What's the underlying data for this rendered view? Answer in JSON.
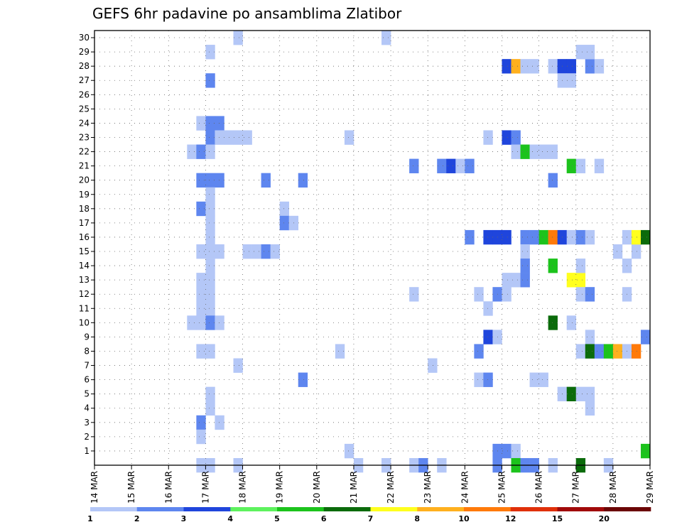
{
  "chart_data": {
    "type": "heatmap",
    "title": "GEFS 6hr padavine po ansamblima Zlatibor",
    "xlabel": "",
    "ylabel": "",
    "x_ticks": [
      "14 MAR",
      "15 MAR",
      "16 MAR",
      "17 MAR",
      "18 MAR",
      "19 MAR",
      "20 MAR",
      "21 MAR",
      "22 MAR",
      "23 MAR",
      "24 MAR",
      "25 MAR",
      "26 MAR",
      "27 MAR",
      "28 MAR",
      "29 MAR"
    ],
    "y_ticks": [
      1,
      2,
      3,
      4,
      5,
      6,
      7,
      8,
      9,
      10,
      11,
      12,
      13,
      14,
      15,
      16,
      17,
      18,
      19,
      20,
      21,
      22,
      23,
      24,
      25,
      26,
      27,
      28,
      29,
      30
    ],
    "ylim": [
      0,
      30
    ],
    "x_step_hours": 6,
    "grid": true,
    "legend_position": "bottom",
    "colorbar": {
      "labels": [
        "1",
        "2",
        "3",
        "4",
        "5",
        "6",
        "7",
        "8",
        "10",
        "12",
        "15",
        "20"
      ],
      "colors": [
        "#b4c7f7",
        "#5e86ef",
        "#1f45dc",
        "#5ef25e",
        "#1cc31c",
        "#0b6b0b",
        "#ffff1e",
        "#ffb01e",
        "#ff7a0a",
        "#e0300a",
        "#a10a0a",
        "#6b0505"
      ]
    },
    "cells": [
      {
        "x": "17 MAR 00h",
        "m": 29,
        "c": 1
      },
      {
        "x": "17 MAR 00h",
        "m": 27,
        "c": 2
      },
      {
        "x": "16 MAR 18h",
        "m": 24,
        "c": 1
      },
      {
        "x": "17 MAR 00h",
        "m": 24,
        "c": 2
      },
      {
        "x": "17 MAR 06h",
        "m": 24,
        "c": 2
      },
      {
        "x": "17 MAR 00h",
        "m": 23,
        "c": 2
      },
      {
        "x": "17 MAR 06h",
        "m": 23,
        "c": 1
      },
      {
        "x": "17 MAR 12h",
        "m": 23,
        "c": 1
      },
      {
        "x": "17 MAR 18h",
        "m": 23,
        "c": 1
      },
      {
        "x": "18 MAR 00h",
        "m": 23,
        "c": 1
      },
      {
        "x": "16 MAR 12h",
        "m": 22,
        "c": 1
      },
      {
        "x": "16 MAR 18h",
        "m": 22,
        "c": 2
      },
      {
        "x": "17 MAR 00h",
        "m": 22,
        "c": 1
      },
      {
        "x": "16 MAR 18h",
        "m": 20,
        "c": 2
      },
      {
        "x": "17 MAR 00h",
        "m": 20,
        "c": 2
      },
      {
        "x": "17 MAR 06h",
        "m": 20,
        "c": 2
      },
      {
        "x": "17 MAR 00h",
        "m": 19,
        "c": 1
      },
      {
        "x": "16 MAR 18h",
        "m": 18,
        "c": 2
      },
      {
        "x": "17 MAR 00h",
        "m": 18,
        "c": 1
      },
      {
        "x": "17 MAR 00h",
        "m": 17,
        "c": 1
      },
      {
        "x": "17 MAR 00h",
        "m": 16,
        "c": 1
      },
      {
        "x": "16 MAR 18h",
        "m": 15,
        "c": 1
      },
      {
        "x": "17 MAR 00h",
        "m": 15,
        "c": 1
      },
      {
        "x": "17 MAR 06h",
        "m": 15,
        "c": 1
      },
      {
        "x": "17 MAR 00h",
        "m": 14,
        "c": 1
      },
      {
        "x": "17 MAR 00h",
        "m": 13,
        "c": 1
      },
      {
        "x": "16 MAR 18h",
        "m": 13,
        "c": 1
      },
      {
        "x": "16 MAR 18h",
        "m": 12,
        "c": 1
      },
      {
        "x": "17 MAR 00h",
        "m": 12,
        "c": 1
      },
      {
        "x": "16 MAR 18h",
        "m": 11,
        "c": 1
      },
      {
        "x": "17 MAR 00h",
        "m": 11,
        "c": 1
      },
      {
        "x": "16 MAR 12h",
        "m": 10,
        "c": 1
      },
      {
        "x": "16 MAR 18h",
        "m": 10,
        "c": 1
      },
      {
        "x": "17 MAR 00h",
        "m": 10,
        "c": 2
      },
      {
        "x": "17 MAR 06h",
        "m": 10,
        "c": 1
      },
      {
        "x": "16 MAR 18h",
        "m": 8,
        "c": 1
      },
      {
        "x": "17 MAR 00h",
        "m": 8,
        "c": 1
      },
      {
        "x": "17 MAR 18h",
        "m": 7,
        "c": 1
      },
      {
        "x": "17 MAR 00h",
        "m": 5,
        "c": 1
      },
      {
        "x": "17 MAR 00h",
        "m": 4,
        "c": 1
      },
      {
        "x": "16 MAR 18h",
        "m": 3,
        "c": 2
      },
      {
        "x": "17 MAR 06h",
        "m": 3,
        "c": 1
      },
      {
        "x": "16 MAR 18h",
        "m": 2,
        "c": 1
      },
      {
        "x": "16 MAR 18h",
        "m": 0,
        "c": 1
      },
      {
        "x": "17 MAR 00h",
        "m": 0,
        "c": 1
      },
      {
        "x": "17 MAR 18h",
        "m": 0,
        "c": 1
      },
      {
        "x": "17 MAR 18h",
        "m": 30,
        "c": 1
      },
      {
        "x": "21 MAR 18h",
        "m": 30,
        "c": 1
      },
      {
        "x": "18 MAR 12h",
        "m": 20,
        "c": 2
      },
      {
        "x": "19 MAR 12h",
        "m": 20,
        "c": 2
      },
      {
        "x": "19 MAR 00h",
        "m": 18,
        "c": 1
      },
      {
        "x": "19 MAR 00h",
        "m": 17,
        "c": 2
      },
      {
        "x": "19 MAR 06h",
        "m": 17,
        "c": 1
      },
      {
        "x": "18 MAR 00h",
        "m": 15,
        "c": 1
      },
      {
        "x": "18 MAR 06h",
        "m": 15,
        "c": 1
      },
      {
        "x": "18 MAR 12h",
        "m": 15,
        "c": 2
      },
      {
        "x": "18 MAR 18h",
        "m": 15,
        "c": 1
      },
      {
        "x": "19 MAR 12h",
        "m": 6,
        "c": 2
      },
      {
        "x": "20 MAR 12h",
        "m": 8,
        "c": 1
      },
      {
        "x": "20 MAR 18h",
        "m": 23,
        "c": 1
      },
      {
        "x": "20 MAR 18h",
        "m": 1,
        "c": 1
      },
      {
        "x": "21 MAR 00h",
        "m": 0,
        "c": 1
      },
      {
        "x": "21 MAR 18h",
        "m": 0,
        "c": 1
      },
      {
        "x": "22 MAR 12h",
        "m": 21,
        "c": 2
      },
      {
        "x": "22 MAR 12h",
        "m": 12,
        "c": 1
      },
      {
        "x": "22 MAR 12h",
        "m": 0,
        "c": 1
      },
      {
        "x": "22 MAR 18h",
        "m": 0,
        "c": 2
      },
      {
        "x": "23 MAR 00h",
        "m": 7,
        "c": 1
      },
      {
        "x": "23 MAR 06h",
        "m": 21,
        "c": 2
      },
      {
        "x": "23 MAR 12h",
        "m": 21,
        "c": 3
      },
      {
        "x": "23 MAR 18h",
        "m": 21,
        "c": 1
      },
      {
        "x": "24 MAR 00h",
        "m": 21,
        "c": 2
      },
      {
        "x": "23 MAR 06h",
        "m": 0,
        "c": 1
      },
      {
        "x": "24 MAR 00h",
        "m": 16,
        "c": 2
      },
      {
        "x": "24 MAR 12h",
        "m": 23,
        "c": 1
      },
      {
        "x": "24 MAR 12h",
        "m": 16,
        "c": 3
      },
      {
        "x": "24 MAR 18h",
        "m": 16,
        "c": 3
      },
      {
        "x": "25 MAR 00h",
        "m": 16,
        "c": 3
      },
      {
        "x": "24 MAR 06h",
        "m": 12,
        "c": 1
      },
      {
        "x": "24 MAR 12h",
        "m": 11,
        "c": 1
      },
      {
        "x": "24 MAR 12h",
        "m": 9,
        "c": 3
      },
      {
        "x": "24 MAR 18h",
        "m": 9,
        "c": 1
      },
      {
        "x": "24 MAR 06h",
        "m": 8,
        "c": 2
      },
      {
        "x": "24 MAR 06h",
        "m": 6,
        "c": 1
      },
      {
        "x": "24 MAR 12h",
        "m": 6,
        "c": 2
      },
      {
        "x": "24 MAR 18h",
        "m": 1,
        "c": 2
      },
      {
        "x": "25 MAR 00h",
        "m": 1,
        "c": 2
      },
      {
        "x": "25 MAR 06h",
        "m": 1,
        "c": 1
      },
      {
        "x": "24 MAR 18h",
        "m": 0,
        "c": 2
      },
      {
        "x": "25 MAR 00h",
        "m": 28,
        "c": 3
      },
      {
        "x": "25 MAR 06h",
        "m": 28,
        "c": 8
      },
      {
        "x": "25 MAR 12h",
        "m": 28,
        "c": 1
      },
      {
        "x": "25 MAR 18h",
        "m": 28,
        "c": 1
      },
      {
        "x": "25 MAR 00h",
        "m": 23,
        "c": 3
      },
      {
        "x": "25 MAR 06h",
        "m": 23,
        "c": 2
      },
      {
        "x": "25 MAR 06h",
        "m": 22,
        "c": 1
      },
      {
        "x": "25 MAR 12h",
        "m": 22,
        "c": 5
      },
      {
        "x": "25 MAR 18h",
        "m": 22,
        "c": 1
      },
      {
        "x": "25 MAR 12h",
        "m": 16,
        "c": 2
      },
      {
        "x": "25 MAR 12h",
        "m": 15,
        "c": 1
      },
      {
        "x": "25 MAR 12h",
        "m": 14,
        "c": 2
      },
      {
        "x": "25 MAR 00h",
        "m": 13,
        "c": 1
      },
      {
        "x": "25 MAR 06h",
        "m": 13,
        "c": 1
      },
      {
        "x": "25 MAR 12h",
        "m": 13,
        "c": 2
      },
      {
        "x": "24 MAR 18h",
        "m": 12,
        "c": 2
      },
      {
        "x": "25 MAR 00h",
        "m": 12,
        "c": 1
      },
      {
        "x": "25 MAR 06h",
        "m": 0,
        "c": 5
      },
      {
        "x": "25 MAR 12h",
        "m": 0,
        "c": 2
      },
      {
        "x": "25 MAR 18h",
        "m": 0,
        "c": 2
      },
      {
        "x": "26 MAR 06h",
        "m": 28,
        "c": 1
      },
      {
        "x": "26 MAR 12h",
        "m": 28,
        "c": 3
      },
      {
        "x": "26 MAR 18h",
        "m": 28,
        "c": 3
      },
      {
        "x": "27 MAR 06h",
        "m": 28,
        "c": 2
      },
      {
        "x": "27 MAR 12h",
        "m": 28,
        "c": 1
      },
      {
        "x": "26 MAR 12h",
        "m": 27,
        "c": 1
      },
      {
        "x": "26 MAR 18h",
        "m": 27,
        "c": 1
      },
      {
        "x": "27 MAR 00h",
        "m": 29,
        "c": 1
      },
      {
        "x": "27 MAR 06h",
        "m": 29,
        "c": 1
      },
      {
        "x": "26 MAR 00h",
        "m": 22,
        "c": 1
      },
      {
        "x": "26 MAR 06h",
        "m": 22,
        "c": 1
      },
      {
        "x": "26 MAR 18h",
        "m": 21,
        "c": 5
      },
      {
        "x": "27 MAR 00h",
        "m": 21,
        "c": 1
      },
      {
        "x": "27 MAR 12h",
        "m": 21,
        "c": 1
      },
      {
        "x": "26 MAR 06h",
        "m": 20,
        "c": 2
      },
      {
        "x": "25 MAR 18h",
        "m": 16,
        "c": 2
      },
      {
        "x": "26 MAR 00h",
        "m": 16,
        "c": 5
      },
      {
        "x": "26 MAR 06h",
        "m": 16,
        "c": 9
      },
      {
        "x": "26 MAR 12h",
        "m": 16,
        "c": 3
      },
      {
        "x": "26 MAR 18h",
        "m": 16,
        "c": 1
      },
      {
        "x": "27 MAR 00h",
        "m": 16,
        "c": 2
      },
      {
        "x": "27 MAR 06h",
        "m": 16,
        "c": 1
      },
      {
        "x": "26 MAR 06h",
        "m": 14,
        "c": 5
      },
      {
        "x": "26 MAR 18h",
        "m": 13,
        "c": 7
      },
      {
        "x": "27 MAR 00h",
        "m": 13,
        "c": 7
      },
      {
        "x": "27 MAR 00h",
        "m": 14,
        "c": 1
      },
      {
        "x": "27 MAR 00h",
        "m": 12,
        "c": 1
      },
      {
        "x": "27 MAR 06h",
        "m": 12,
        "c": 2
      },
      {
        "x": "26 MAR 06h",
        "m": 10,
        "c": 6
      },
      {
        "x": "26 MAR 18h",
        "m": 10,
        "c": 1
      },
      {
        "x": "27 MAR 06h",
        "m": 9,
        "c": 1
      },
      {
        "x": "27 MAR 00h",
        "m": 8,
        "c": 1
      },
      {
        "x": "27 MAR 06h",
        "m": 8,
        "c": 6
      },
      {
        "x": "27 MAR 12h",
        "m": 8,
        "c": 2
      },
      {
        "x": "27 MAR 18h",
        "m": 8,
        "c": 5
      },
      {
        "x": "28 MAR 00h",
        "m": 8,
        "c": 8
      },
      {
        "x": "28 MAR 06h",
        "m": 8,
        "c": 1
      },
      {
        "x": "28 MAR 12h",
        "m": 8,
        "c": 9
      },
      {
        "x": "25 MAR 18h",
        "m": 6,
        "c": 1
      },
      {
        "x": "26 MAR 00h",
        "m": 6,
        "c": 1
      },
      {
        "x": "26 MAR 12h",
        "m": 5,
        "c": 1
      },
      {
        "x": "26 MAR 18h",
        "m": 5,
        "c": 6
      },
      {
        "x": "27 MAR 00h",
        "m": 5,
        "c": 1
      },
      {
        "x": "27 MAR 06h",
        "m": 5,
        "c": 1
      },
      {
        "x": "27 MAR 06h",
        "m": 4,
        "c": 1
      },
      {
        "x": "26 MAR 06h",
        "m": 0,
        "c": 1
      },
      {
        "x": "27 MAR 00h",
        "m": 0,
        "c": 6
      },
      {
        "x": "27 MAR 18h",
        "m": 0,
        "c": 1
      },
      {
        "x": "28 MAR 00h",
        "m": 15,
        "c": 1
      },
      {
        "x": "28 MAR 12h",
        "m": 15,
        "c": 1
      },
      {
        "x": "28 MAR 06h",
        "m": 16,
        "c": 1
      },
      {
        "x": "28 MAR 12h",
        "m": 16,
        "c": 7
      },
      {
        "x": "28 MAR 18h",
        "m": 16,
        "c": 6
      },
      {
        "x": "28 MAR 06h",
        "m": 14,
        "c": 1
      },
      {
        "x": "28 MAR 06h",
        "m": 12,
        "c": 1
      },
      {
        "x": "28 MAR 18h",
        "m": 9,
        "c": 2
      },
      {
        "x": "28 MAR 18h",
        "m": 1,
        "c": 5
      }
    ]
  }
}
